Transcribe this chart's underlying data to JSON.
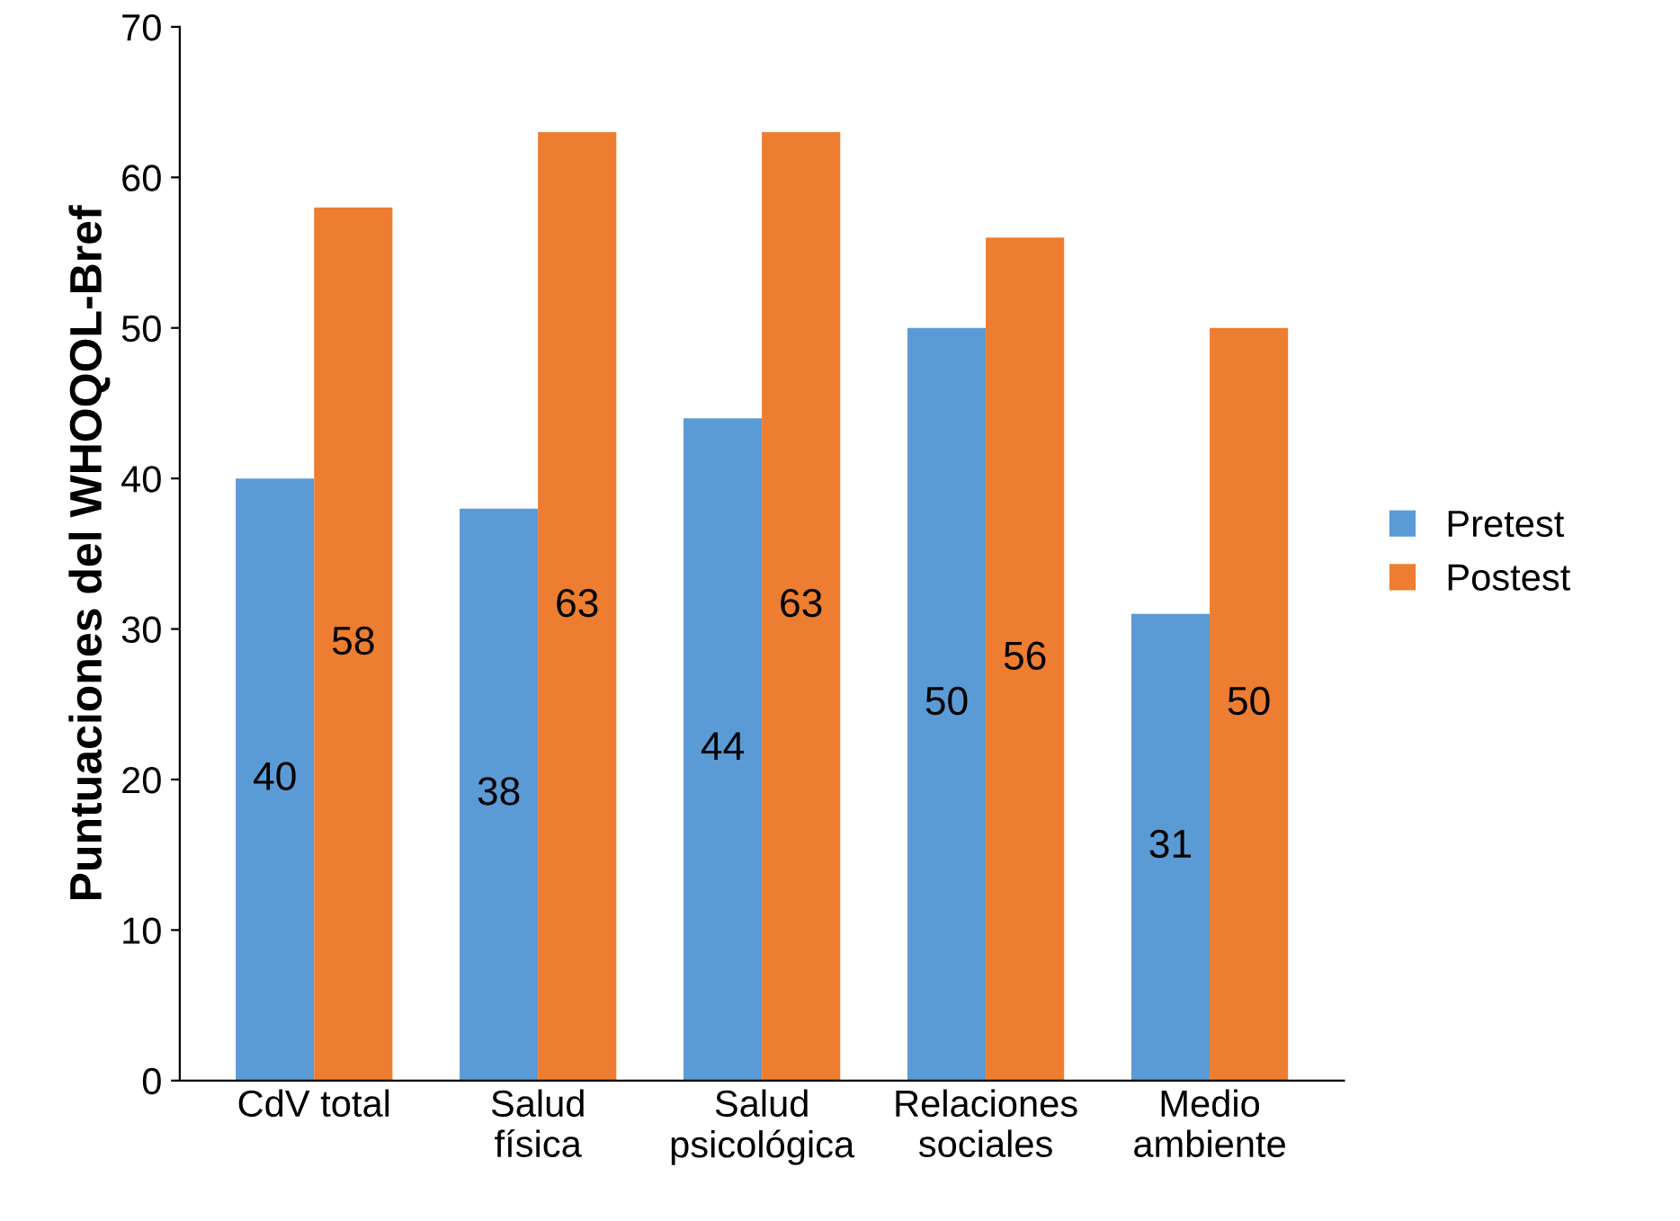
{
  "chart_data": {
    "type": "bar",
    "ylabel": "Puntuaciones del WHOQOL-Bref",
    "categories": [
      "CdV total",
      "Salud\nfísica",
      "Salud\npsicológica",
      "Relaciones\nsociales",
      "Medio\nambiente"
    ],
    "series": [
      {
        "name": "Pretest",
        "color": "#5b9bd5",
        "values": [
          40,
          38,
          44,
          50,
          31
        ]
      },
      {
        "name": "Postest",
        "color": "#ed7d31",
        "values": [
          58,
          63,
          63,
          56,
          50
        ]
      }
    ],
    "ylim": [
      0,
      70
    ],
    "yticks": [
      0,
      10,
      20,
      30,
      40,
      50,
      60,
      70
    ],
    "data_labels": true,
    "legend": "right",
    "grid": false
  }
}
